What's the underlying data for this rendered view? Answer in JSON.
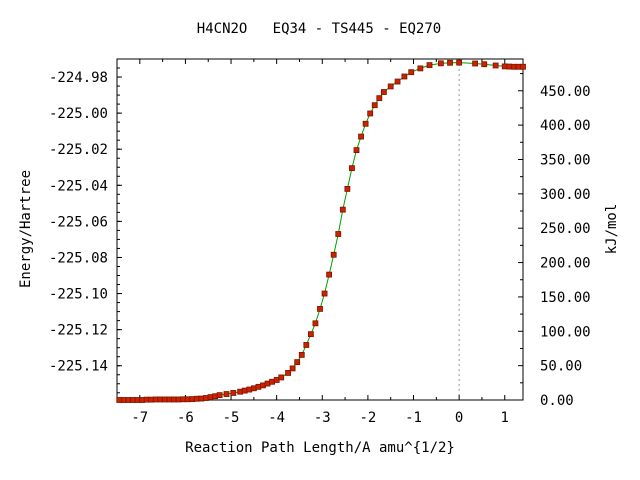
{
  "chart_data": {
    "type": "line",
    "title": "H4CN2O   EQ34 - TS445 - EQ270",
    "xlabel": "Reaction Path Length/A amu^{1/2}",
    "ylabel": "Energy/Hartree",
    "y2label": "kJ/mol",
    "xlim": [
      -7.5,
      1.4
    ],
    "ylim": [
      -225.159,
      -224.97
    ],
    "x_ticks": [
      -7,
      -6,
      -5,
      -4,
      -3,
      -2,
      -1,
      0,
      1
    ],
    "x_tick_labels": [
      "-7",
      "-6",
      "-5",
      "-4",
      "-3",
      "-2",
      "-1",
      "0",
      "1"
    ],
    "y_ticks": [
      -224.98,
      -225.0,
      -225.02,
      -225.04,
      -225.06,
      -225.08,
      -225.1,
      -225.12,
      -225.14
    ],
    "y_tick_labels": [
      "-224.98",
      "-225.00",
      "-225.02",
      "-225.04",
      "-225.06",
      "-225.08",
      "-225.10",
      "-225.12",
      "-225.14"
    ],
    "y2_ticks": [
      0,
      50,
      100,
      150,
      200,
      250,
      300,
      350,
      400,
      450
    ],
    "y2_tick_labels": [
      "0.00",
      "50.00",
      "100.00",
      "150.00",
      "200.00",
      "250.00",
      "300.00",
      "350.00",
      "400.00",
      "450.00"
    ],
    "y2_zero_energy": -225.159,
    "kj_per_hartree": 2625.5,
    "ts_marker_x": 0,
    "line_color": "#00a000",
    "marker_color": "#cc2200",
    "marker_edge_color": "#7a1400",
    "series": [
      {
        "x": [
          -7.45,
          -7.35,
          -7.25,
          -7.15,
          -7.05,
          -6.95,
          -6.85,
          -6.75,
          -6.65,
          -6.55,
          -6.45,
          -6.35,
          -6.25,
          -6.15,
          -6.05,
          -5.95,
          -5.85,
          -5.75,
          -5.65,
          -5.55,
          -5.45,
          -5.35,
          -5.25,
          -5.1,
          -4.95,
          -4.8,
          -4.7,
          -4.6,
          -4.5,
          -4.4,
          -4.3,
          -4.2,
          -4.1,
          -4.0,
          -3.9,
          -3.75,
          -3.65,
          -3.55,
          -3.45,
          -3.35,
          -3.25,
          -3.15,
          -3.05,
          -2.95,
          -2.85,
          -2.75,
          -2.65,
          -2.55,
          -2.45,
          -2.35,
          -2.25,
          -2.15,
          -2.05,
          -1.95,
          -1.85,
          -1.75,
          -1.65,
          -1.5,
          -1.35,
          -1.2,
          -1.05,
          -0.85,
          -0.65,
          -0.4,
          -0.2,
          0.0,
          0.35,
          0.55,
          0.8,
          1.0,
          1.1,
          1.2,
          1.3,
          1.4
        ],
        "y": [
          -225.159,
          -225.159,
          -225.159,
          -225.159,
          -225.159,
          -225.159,
          -225.1588,
          -225.1588,
          -225.1587,
          -225.1587,
          -225.1587,
          -225.1587,
          -225.1587,
          -225.1587,
          -225.1586,
          -225.1586,
          -225.1585,
          -225.1583,
          -225.1582,
          -225.1579,
          -225.1574,
          -225.1569,
          -225.1563,
          -225.1557,
          -225.1551,
          -225.1544,
          -225.1538,
          -225.1532,
          -225.1525,
          -225.1517,
          -225.1509,
          -225.1499,
          -225.1489,
          -225.1479,
          -225.1465,
          -225.144,
          -225.1415,
          -225.138,
          -225.134,
          -225.1285,
          -225.1225,
          -225.1165,
          -225.1085,
          -225.1,
          -225.0895,
          -225.0785,
          -225.067,
          -225.0535,
          -225.042,
          -225.0305,
          -225.0205,
          -225.013,
          -225.0059,
          -225.0002,
          -224.9956,
          -224.9917,
          -224.9883,
          -224.9852,
          -224.9825,
          -224.9797,
          -224.9773,
          -224.9752,
          -224.9734,
          -224.9724,
          -224.9721,
          -224.972,
          -224.9725,
          -224.9729,
          -224.9736,
          -224.9741,
          -224.9742,
          -224.9743,
          -224.9743,
          -224.9743
        ]
      }
    ]
  }
}
